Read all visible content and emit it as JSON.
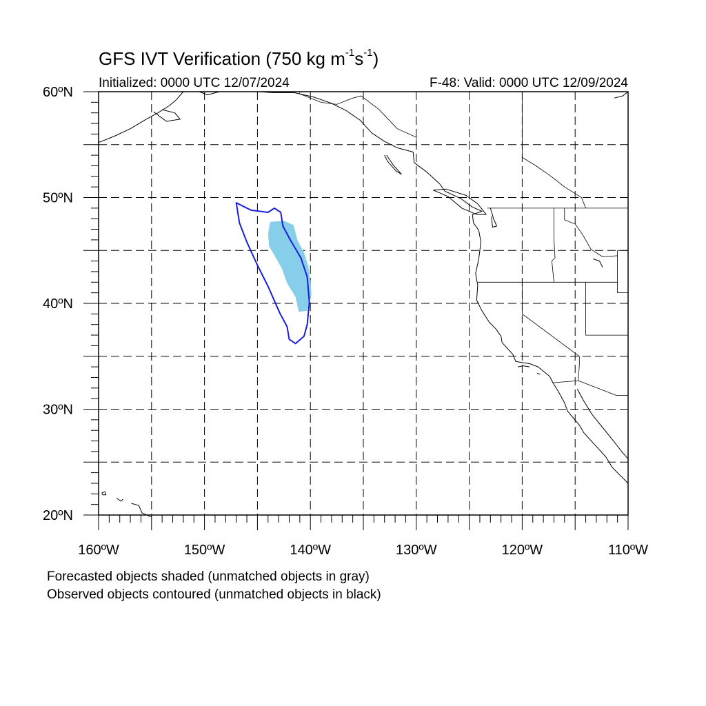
{
  "title": {
    "main": "GFS IVT Verification (750 kg m",
    "exp1": "-1",
    "mid": "s",
    "exp2": "-1",
    "end": ")"
  },
  "initialized": "Initialized: 0000 UTC 12/07/2024",
  "valid": "F-48: Valid: 0000 UTC 12/09/2024",
  "footnotes": [
    "Forecasted objects shaded (unmatched objects in gray)",
    "Observed objects contoured (unmatched objects in black)"
  ],
  "map": {
    "projection": "cylindrical equidistant",
    "lon_range": [
      -160,
      -110
    ],
    "lat_range": [
      20,
      60
    ],
    "grid_step_deg": 5,
    "lat_labels": [
      "20ºN",
      "30ºN",
      "40ºN",
      "50ºN",
      "60ºN"
    ],
    "lon_labels": [
      "160ºW",
      "150ºW",
      "140ºW",
      "130ºW",
      "120ºW",
      "110ºW"
    ],
    "grid_style": "dashed",
    "colors": {
      "forecast_fill": "#87ceeb",
      "observed_contour": "#1a1ae6",
      "coastline": "#000000",
      "grid": "#000000"
    },
    "forecast_object": {
      "label": "forecast IVT object (matched)",
      "polygon": [
        [
          -143.8,
          47.7
        ],
        [
          -142.5,
          47.8
        ],
        [
          -141.6,
          47.4
        ],
        [
          -141.2,
          45.9
        ],
        [
          -140.6,
          44.8
        ],
        [
          -140.2,
          43.5
        ],
        [
          -140.0,
          42.2
        ],
        [
          -139.9,
          40.8
        ],
        [
          -140.3,
          39.3
        ],
        [
          -141.1,
          39.2
        ],
        [
          -141.4,
          40.6
        ],
        [
          -142.2,
          41.9
        ],
        [
          -142.7,
          43.3
        ],
        [
          -143.2,
          44.2
        ],
        [
          -143.9,
          45.4
        ],
        [
          -144.0,
          46.6
        ]
      ]
    },
    "observed_object": {
      "label": "observed IVT object (matched)",
      "polygon": [
        [
          -147.0,
          49.5
        ],
        [
          -145.6,
          48.8
        ],
        [
          -144.0,
          48.6
        ],
        [
          -143.4,
          49.0
        ],
        [
          -142.8,
          48.6
        ],
        [
          -142.6,
          47.3
        ],
        [
          -141.9,
          46.0
        ],
        [
          -140.9,
          44.3
        ],
        [
          -140.3,
          42.5
        ],
        [
          -140.1,
          40.1
        ],
        [
          -140.3,
          38.0
        ],
        [
          -140.6,
          36.9
        ],
        [
          -141.4,
          36.2
        ],
        [
          -142.0,
          36.6
        ],
        [
          -142.2,
          37.8
        ],
        [
          -142.9,
          39.1
        ],
        [
          -144.0,
          41.6
        ],
        [
          -145.0,
          43.6
        ],
        [
          -146.0,
          45.8
        ],
        [
          -146.7,
          47.6
        ]
      ]
    },
    "coastlines": [
      [
        [
          -160.0,
          55.2
        ],
        [
          -158.5,
          55.8
        ],
        [
          -157.0,
          56.5
        ],
        [
          -155.5,
          57.4
        ],
        [
          -154.4,
          58.0
        ],
        [
          -153.3,
          58.7
        ],
        [
          -152.7,
          59.2
        ],
        [
          -152.0,
          60.0
        ]
      ],
      [
        [
          -154.8,
          58.1
        ],
        [
          -153.6,
          57.2
        ],
        [
          -152.3,
          57.4
        ],
        [
          -152.8,
          58.0
        ],
        [
          -154.0,
          58.3
        ]
      ],
      [
        [
          -150.5,
          60.0
        ],
        [
          -149.7,
          59.7
        ],
        [
          -148.6,
          60.0
        ]
      ],
      [
        [
          -146.4,
          60.0
        ],
        [
          -144.8,
          60.0
        ],
        [
          -143.5,
          59.9
        ],
        [
          -141.5,
          59.9
        ],
        [
          -139.7,
          59.5
        ],
        [
          -138.0,
          58.9
        ],
        [
          -136.6,
          58.2
        ],
        [
          -135.3,
          57.3
        ],
        [
          -134.2,
          56.1
        ],
        [
          -133.0,
          55.3
        ],
        [
          -131.8,
          54.7
        ],
        [
          -130.3,
          54.3
        ],
        [
          -130.2,
          53.3
        ],
        [
          -129.0,
          52.4
        ],
        [
          -127.8,
          51.3
        ],
        [
          -127.3,
          50.6
        ],
        [
          -125.8,
          49.9
        ],
        [
          -124.7,
          49.1
        ],
        [
          -123.8,
          48.7
        ],
        [
          -124.7,
          48.4
        ],
        [
          -124.6,
          47.6
        ],
        [
          -124.1,
          46.9
        ],
        [
          -123.9,
          45.8
        ],
        [
          -124.1,
          44.2
        ],
        [
          -124.4,
          42.8
        ],
        [
          -124.2,
          41.7
        ],
        [
          -124.3,
          40.3
        ],
        [
          -123.8,
          39.3
        ],
        [
          -123.1,
          38.2
        ],
        [
          -122.5,
          37.6
        ],
        [
          -122.0,
          36.9
        ],
        [
          -121.9,
          36.3
        ],
        [
          -120.9,
          35.2
        ],
        [
          -120.6,
          34.5
        ],
        [
          -119.3,
          34.3
        ],
        [
          -118.5,
          34.0
        ],
        [
          -117.4,
          33.1
        ],
        [
          -117.1,
          32.5
        ],
        [
          -116.6,
          31.7
        ],
        [
          -116.0,
          30.6
        ],
        [
          -115.7,
          29.8
        ],
        [
          -114.6,
          28.5
        ],
        [
          -114.2,
          27.8
        ],
        [
          -113.2,
          26.7
        ],
        [
          -112.1,
          25.5
        ],
        [
          -111.5,
          24.5
        ],
        [
          -110.5,
          23.5
        ],
        [
          -110.0,
          23.0
        ]
      ],
      [
        [
          -114.8,
          31.9
        ],
        [
          -114.2,
          30.8
        ],
        [
          -113.4,
          29.5
        ],
        [
          -112.6,
          28.5
        ],
        [
          -111.7,
          27.4
        ],
        [
          -110.6,
          26.0
        ],
        [
          -110.0,
          25.3
        ]
      ],
      [
        [
          -128.4,
          50.7
        ],
        [
          -127.0,
          50.1
        ],
        [
          -125.7,
          49.0
        ],
        [
          -124.3,
          48.4
        ],
        [
          -123.4,
          48.4
        ],
        [
          -124.2,
          49.4
        ],
        [
          -125.3,
          50.2
        ],
        [
          -127.2,
          50.8
        ],
        [
          -128.4,
          50.7
        ]
      ],
      [
        [
          -132.8,
          54.0
        ],
        [
          -132.2,
          53.1
        ],
        [
          -131.4,
          52.2
        ],
        [
          -131.9,
          52.5
        ],
        [
          -132.7,
          53.4
        ],
        [
          -133.0,
          54.0
        ]
      ],
      [
        [
          -123.0,
          49.0
        ],
        [
          -122.7,
          48.0
        ],
        [
          -122.4,
          47.3
        ],
        [
          -122.8,
          47.2
        ],
        [
          -122.9,
          48.2
        ]
      ],
      [
        [
          -119.3,
          34.0
        ],
        [
          -119.9,
          34.1
        ],
        [
          -120.4,
          34.0
        ]
      ],
      [
        [
          -118.6,
          33.4
        ],
        [
          -118.3,
          33.3
        ]
      ],
      [
        [
          -113.3,
          44.2
        ],
        [
          -112.7,
          44.0
        ],
        [
          -112.4,
          43.4
        ]
      ],
      [
        [
          -110.0,
          60.0
        ],
        [
          -110.5,
          59.6
        ],
        [
          -111.3,
          59.4
        ]
      ],
      [
        [
          -158.3,
          21.6
        ],
        [
          -157.9,
          21.3
        ],
        [
          -157.7,
          21.5
        ]
      ],
      [
        [
          -156.9,
          21.1
        ],
        [
          -156.2,
          20.9
        ],
        [
          -155.9,
          20.2
        ],
        [
          -155.0,
          19.8
        ]
      ],
      [
        [
          -159.7,
          22.1
        ],
        [
          -159.4,
          22.2
        ],
        [
          -159.3,
          21.9
        ],
        [
          -159.6,
          21.9
        ],
        [
          -159.7,
          22.1
        ]
      ]
    ],
    "borders": [
      [
        [
          -141.0,
          60.0
        ],
        [
          -141.0,
          59.8
        ],
        [
          -139.0,
          59.0
        ],
        [
          -137.5,
          58.8
        ],
        [
          -136.0,
          59.4
        ],
        [
          -135.2,
          59.6
        ],
        [
          -133.5,
          58.3
        ],
        [
          -131.8,
          56.5
        ],
        [
          -130.0,
          55.7
        ],
        [
          -130.0,
          54.6
        ]
      ],
      [
        [
          -123.3,
          49.0
        ],
        [
          -110.0,
          49.0
        ]
      ],
      [
        [
          -117.0,
          49.0
        ],
        [
          -117.0,
          46.0
        ],
        [
          -116.9,
          44.3
        ],
        [
          -117.2,
          44.0
        ],
        [
          -117.0,
          42.0
        ]
      ],
      [
        [
          -124.2,
          42.0
        ],
        [
          -111.0,
          42.0
        ]
      ],
      [
        [
          -120.0,
          42.0
        ],
        [
          -120.0,
          39.0
        ],
        [
          -114.6,
          35.0
        ],
        [
          -114.6,
          34.2
        ],
        [
          -114.7,
          32.7
        ]
      ],
      [
        [
          -114.0,
          42.0
        ],
        [
          -114.0,
          37.0
        ],
        [
          -110.0,
          37.0
        ]
      ],
      [
        [
          -111.0,
          45.0
        ],
        [
          -110.0,
          45.0
        ]
      ],
      [
        [
          -111.0,
          45.0
        ],
        [
          -111.0,
          41.0
        ],
        [
          -110.0,
          41.0
        ]
      ],
      [
        [
          -117.1,
          32.5
        ],
        [
          -114.7,
          32.7
        ],
        [
          -111.1,
          31.3
        ],
        [
          -110.0,
          31.3
        ]
      ],
      [
        [
          -116.0,
          49.0
        ],
        [
          -116.0,
          47.9
        ],
        [
          -115.0,
          47.5
        ],
        [
          -114.3,
          46.5
        ],
        [
          -113.5,
          45.1
        ],
        [
          -112.4,
          44.4
        ],
        [
          -111.0,
          44.5
        ]
      ],
      [
        [
          -120.0,
          60.0
        ],
        [
          -120.0,
          53.8
        ],
        [
          -118.7,
          53.0
        ],
        [
          -117.4,
          52.1
        ],
        [
          -116.0,
          51.0
        ],
        [
          -114.4,
          50.0
        ],
        [
          -114.0,
          49.0
        ]
      ]
    ]
  }
}
